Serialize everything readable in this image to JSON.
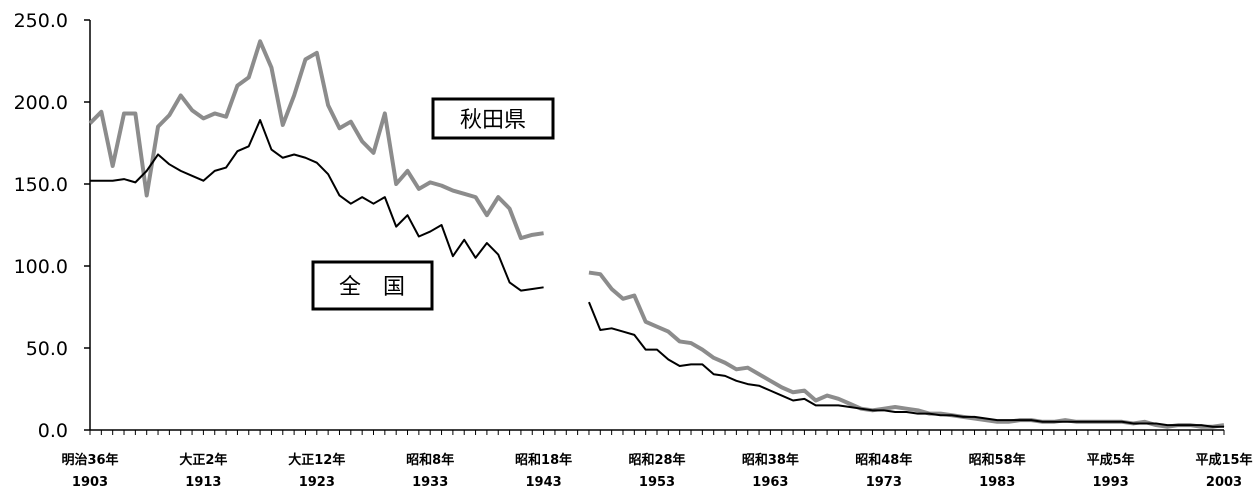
{
  "chart_data": {
    "type": "line",
    "title": "",
    "xlabel": "",
    "ylabel": "",
    "ylim": [
      0,
      250
    ],
    "xlim": [
      1903,
      2003
    ],
    "yticks": [
      "0.0",
      "50.0",
      "100.0",
      "150.0",
      "200.0",
      "250.0"
    ],
    "xticks": [
      {
        "era": "明治36年",
        "year": "1903"
      },
      {
        "era": "大正2年",
        "year": "1913"
      },
      {
        "era": "大正12年",
        "year": "1923"
      },
      {
        "era": "昭和8年",
        "year": "1933"
      },
      {
        "era": "昭和18年",
        "year": "1943"
      },
      {
        "era": "昭和28年",
        "year": "1953"
      },
      {
        "era": "昭和38年",
        "year": "1963"
      },
      {
        "era": "昭和48年",
        "year": "1973"
      },
      {
        "era": "昭和58年",
        "year": "1983"
      },
      {
        "era": "平成5年",
        "year": "1993"
      },
      {
        "era": "平成15年",
        "year": "2003"
      }
    ],
    "grid": false,
    "series": [
      {
        "name": "秋田県",
        "color": "#8c8c8c",
        "width": 4,
        "segments": [
          {
            "x": [
              1903,
              1904,
              1905,
              1906,
              1907,
              1908,
              1909,
              1910,
              1911,
              1912,
              1913,
              1914,
              1915,
              1916,
              1917,
              1918,
              1919,
              1920,
              1921,
              1922,
              1923,
              1924,
              1925,
              1926,
              1927,
              1928,
              1929,
              1930,
              1931,
              1932,
              1933,
              1934,
              1935,
              1936,
              1937,
              1938,
              1939,
              1940,
              1941,
              1942,
              1943
            ],
            "y": [
              187,
              194,
              161,
              193,
              193,
              143,
              185,
              192,
              204,
              195,
              190,
              193,
              191,
              210,
              215,
              237,
              221,
              186,
              204,
              226,
              230,
              198,
              184,
              188,
              176,
              169,
              193,
              150,
              158,
              147,
              151,
              149,
              146,
              144,
              142,
              131,
              142,
              135,
              117,
              119,
              120
            ]
          },
          {
            "x": [
              1947,
              1948,
              1949,
              1950,
              1951,
              1952,
              1953,
              1954,
              1955,
              1956,
              1957,
              1958,
              1959,
              1960,
              1961,
              1962,
              1963,
              1964,
              1965,
              1966,
              1967,
              1968,
              1969,
              1970,
              1971,
              1972,
              1973,
              1974,
              1975,
              1976,
              1977,
              1978,
              1979,
              1980,
              1981,
              1982,
              1983,
              1984,
              1985,
              1986,
              1987,
              1988,
              1989,
              1990,
              1991,
              1992,
              1993,
              1994,
              1995,
              1996,
              1997,
              1998,
              1999,
              2000,
              2001,
              2002,
              2003
            ],
            "y": [
              96,
              95,
              86,
              80,
              82,
              66,
              63,
              60,
              54,
              53,
              49,
              44,
              41,
              37,
              38,
              34,
              30,
              26,
              23,
              24,
              18,
              21,
              19,
              16,
              13,
              12,
              13,
              14,
              13,
              12,
              10,
              10,
              9,
              8,
              7,
              6,
              5,
              5,
              6,
              6,
              5,
              5,
              6,
              5,
              5,
              5,
              5,
              5,
              4,
              5,
              3,
              2,
              3,
              3,
              2,
              2,
              3
            ]
          }
        ]
      },
      {
        "name": "全国",
        "color": "#000000",
        "width": 2,
        "segments": [
          {
            "x": [
              1903,
              1904,
              1905,
              1906,
              1907,
              1908,
              1909,
              1910,
              1911,
              1912,
              1913,
              1914,
              1915,
              1916,
              1917,
              1918,
              1919,
              1920,
              1921,
              1922,
              1923,
              1924,
              1925,
              1926,
              1927,
              1928,
              1929,
              1930,
              1931,
              1932,
              1933,
              1934,
              1935,
              1936,
              1937,
              1938,
              1939,
              1940,
              1941,
              1942,
              1943
            ],
            "y": [
              152,
              152,
              152,
              153,
              151,
              158,
              168,
              162,
              158,
              155,
              152,
              158,
              160,
              170,
              173,
              189,
              171,
              166,
              168,
              166,
              163,
              156,
              143,
              138,
              142,
              138,
              142,
              124,
              131,
              118,
              121,
              125,
              106,
              116,
              105,
              114,
              107,
              90,
              85,
              86,
              87
            ]
          },
          {
            "x": [
              1947,
              1948,
              1949,
              1950,
              1951,
              1952,
              1953,
              1954,
              1955,
              1956,
              1957,
              1958,
              1959,
              1960,
              1961,
              1962,
              1963,
              1964,
              1965,
              1966,
              1967,
              1968,
              1969,
              1970,
              1971,
              1972,
              1973,
              1974,
              1975,
              1976,
              1977,
              1978,
              1979,
              1980,
              1981,
              1982,
              1983,
              1984,
              1985,
              1986,
              1987,
              1988,
              1989,
              1990,
              1991,
              1992,
              1993,
              1994,
              1995,
              1996,
              1997,
              1998,
              1999,
              2000,
              2001,
              2002,
              2003
            ],
            "y": [
              78,
              61,
              62,
              60,
              58,
              49,
              49,
              43,
              39,
              40,
              40,
              34,
              33,
              30,
              28,
              27,
              24,
              21,
              18,
              19,
              15,
              15,
              15,
              14,
              13,
              12,
              12,
              11,
              11,
              10,
              10,
              9,
              9,
              8,
              8,
              7,
              6,
              6,
              6,
              6,
              5,
              5,
              5,
              5,
              5,
              5,
              5,
              5,
              4,
              4,
              4,
              3,
              3,
              3,
              3,
              2,
              2
            ]
          }
        ]
      }
    ],
    "annotations": [
      {
        "text": "秋田県",
        "series": "秋田県"
      },
      {
        "text": "全　国",
        "series": "全国"
      }
    ]
  }
}
